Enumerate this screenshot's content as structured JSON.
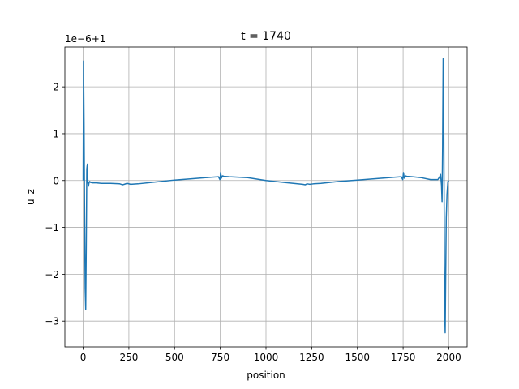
{
  "chart_data": {
    "type": "line",
    "title": "t = 1740",
    "xlabel": "position",
    "ylabel": "u_z",
    "offset_label": "1e−6+1",
    "xlim": [
      -100,
      2100
    ],
    "ylim": [
      -3.55,
      2.85
    ],
    "x_ticks": [
      0,
      250,
      500,
      750,
      1000,
      1250,
      1500,
      1750,
      2000
    ],
    "x_tick_labels": [
      "0",
      "250",
      "500",
      "750",
      "1000",
      "1250",
      "1500",
      "1750",
      "2000"
    ],
    "y_ticks": [
      2,
      1,
      0,
      -1,
      -2,
      -3
    ],
    "y_tick_labels": [
      "2",
      "1",
      "0",
      "−1",
      "−2",
      "−3"
    ],
    "grid": true,
    "series": [
      {
        "color": "#1f77b4",
        "x": [
          0,
          2,
          5,
          8,
          11,
          14,
          17,
          20,
          23,
          26,
          29,
          32,
          36,
          40,
          50,
          70,
          100,
          150,
          200,
          215,
          225,
          240,
          260,
          300,
          400,
          500,
          600,
          700,
          740,
          748,
          752,
          756,
          762,
          770,
          800,
          900,
          1000,
          1100,
          1200,
          1215,
          1225,
          1240,
          1260,
          1300,
          1400,
          1500,
          1600,
          1700,
          1740,
          1748,
          1752,
          1756,
          1762,
          1770,
          1800,
          1850,
          1900,
          1940,
          1950,
          1955,
          1960,
          1963,
          1966,
          1969,
          1972,
          1975,
          1977,
          1980,
          1983,
          1986,
          1990,
          1995,
          2000
        ],
        "y": [
          0.0,
          2.55,
          1.2,
          -0.8,
          -2.3,
          -2.75,
          -1.4,
          0.25,
          0.35,
          -0.05,
          -0.12,
          -0.05,
          -0.02,
          -0.04,
          -0.05,
          -0.05,
          -0.06,
          -0.06,
          -0.07,
          -0.09,
          -0.08,
          -0.06,
          -0.08,
          -0.07,
          -0.03,
          0.01,
          0.04,
          0.07,
          0.08,
          0.02,
          0.17,
          0.05,
          0.1,
          0.09,
          0.08,
          0.06,
          0.0,
          -0.04,
          -0.08,
          -0.09,
          -0.07,
          -0.08,
          -0.07,
          -0.06,
          -0.02,
          0.01,
          0.04,
          0.07,
          0.08,
          0.02,
          0.17,
          0.05,
          0.1,
          0.09,
          0.08,
          0.06,
          0.02,
          0.02,
          0.08,
          0.13,
          -0.1,
          -0.45,
          0.7,
          2.6,
          1.5,
          -1.0,
          -2.6,
          -3.25,
          -2.0,
          -0.8,
          -0.3,
          -0.02,
          0.0
        ]
      }
    ]
  }
}
